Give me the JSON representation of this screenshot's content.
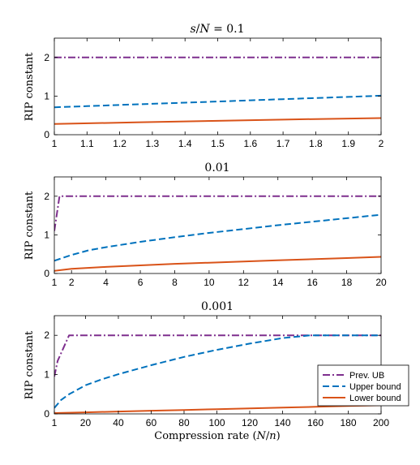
{
  "colors": {
    "prev_ub": "#7E2F8E",
    "upper": "#0072BD",
    "lower": "#D95319"
  },
  "legend": {
    "placement": "bottom-right",
    "entries": [
      "Prev. UB",
      "Upper bound",
      "Lower bound"
    ]
  },
  "chart_data": [
    {
      "type": "line",
      "title": "s/N = 0.1",
      "title_parts": {
        "italic_main": "s",
        "slash": "/",
        "italic_den": "N",
        "rest": " = 0.1"
      },
      "xlabel": "",
      "ylabel": "RIP constant",
      "xlim": [
        1,
        2
      ],
      "ylim": [
        0,
        2.5
      ],
      "xticks": [
        1,
        1.1,
        1.2,
        1.3,
        1.4,
        1.5,
        1.6,
        1.7,
        1.8,
        1.9,
        2
      ],
      "xtick_labels": [
        "1",
        "1.1",
        "1.2",
        "1.3",
        "1.4",
        "1.5",
        "1.6",
        "1.7",
        "1.8",
        "1.9",
        "2"
      ],
      "yticks": [
        0,
        1,
        2
      ],
      "ytick_labels": [
        "0",
        "1",
        "2"
      ],
      "grid": false,
      "series": [
        {
          "name": "Prev. UB",
          "style": "dashdot",
          "x": [
            1,
            1.5,
            2
          ],
          "y": [
            2,
            2,
            2
          ]
        },
        {
          "name": "Upper bound",
          "style": "dashed",
          "x": [
            1,
            1.1,
            1.2,
            1.3,
            1.4,
            1.5,
            1.6,
            1.7,
            1.8,
            1.9,
            2
          ],
          "y": [
            0.71,
            0.74,
            0.77,
            0.8,
            0.83,
            0.86,
            0.89,
            0.92,
            0.95,
            0.98,
            1.01
          ]
        },
        {
          "name": "Lower bound",
          "style": "solid",
          "x": [
            1,
            1.25,
            1.5,
            1.75,
            2
          ],
          "y": [
            0.28,
            0.32,
            0.36,
            0.4,
            0.43
          ]
        }
      ]
    },
    {
      "type": "line",
      "title": "0.01",
      "xlabel": "",
      "ylabel": "RIP constant",
      "xlim": [
        1,
        20
      ],
      "ylim": [
        0,
        2.5
      ],
      "xticks": [
        1,
        2,
        4,
        6,
        8,
        10,
        12,
        14,
        16,
        18,
        20
      ],
      "xtick_labels": [
        "1",
        "2",
        "4",
        "6",
        "8",
        "10",
        "12",
        "14",
        "16",
        "18",
        "20"
      ],
      "yticks": [
        0,
        1,
        2
      ],
      "ytick_labels": [
        "0",
        "1",
        "2"
      ],
      "grid": false,
      "series": [
        {
          "name": "Prev. UB",
          "style": "dashdot",
          "x": [
            1,
            1.3,
            20
          ],
          "y": [
            1.1,
            2,
            2
          ]
        },
        {
          "name": "Upper bound",
          "style": "dashed",
          "x": [
            1,
            2,
            3,
            4,
            6,
            8,
            10,
            12,
            14,
            16,
            18,
            20
          ],
          "y": [
            0.33,
            0.48,
            0.6,
            0.68,
            0.82,
            0.94,
            1.05,
            1.15,
            1.25,
            1.34,
            1.43,
            1.52
          ]
        },
        {
          "name": "Lower bound",
          "style": "solid",
          "x": [
            1,
            2,
            4,
            6,
            8,
            10,
            12,
            14,
            16,
            18,
            20
          ],
          "y": [
            0.07,
            0.12,
            0.17,
            0.21,
            0.25,
            0.28,
            0.31,
            0.34,
            0.37,
            0.4,
            0.43
          ]
        }
      ]
    },
    {
      "type": "line",
      "title": "0.001",
      "xlabel": "Compression rate (N/n)",
      "xlabel_parts": {
        "before": "Compression rate (",
        "num": "N",
        "slash": "/",
        "den": "n",
        "after": ")"
      },
      "ylabel": "RIP constant",
      "xlim": [
        1,
        200
      ],
      "ylim": [
        0,
        2.5
      ],
      "xticks": [
        1,
        20,
        40,
        60,
        80,
        100,
        120,
        140,
        160,
        180,
        200
      ],
      "xtick_labels": [
        "1",
        "20",
        "40",
        "60",
        "80",
        "100",
        "120",
        "140",
        "160",
        "180",
        "200"
      ],
      "yticks": [
        0,
        1,
        2
      ],
      "ytick_labels": [
        "0",
        "1",
        "2"
      ],
      "grid": false,
      "series": [
        {
          "name": "Prev. UB",
          "style": "dashdot",
          "x": [
            1,
            3,
            10,
            200
          ],
          "y": [
            0.95,
            1.35,
            2,
            2
          ]
        },
        {
          "name": "Upper bound",
          "style": "dashed",
          "x": [
            1,
            5,
            10,
            20,
            30,
            40,
            60,
            80,
            100,
            120,
            140,
            157,
            200
          ],
          "y": [
            0.15,
            0.35,
            0.5,
            0.73,
            0.88,
            1.01,
            1.24,
            1.45,
            1.63,
            1.79,
            1.93,
            2,
            2
          ]
        },
        {
          "name": "Lower bound",
          "style": "solid",
          "x": [
            1,
            20,
            40,
            60,
            80,
            100,
            120,
            140,
            160,
            180,
            200
          ],
          "y": [
            0.02,
            0.04,
            0.06,
            0.08,
            0.1,
            0.12,
            0.14,
            0.16,
            0.18,
            0.2,
            0.22
          ]
        }
      ]
    }
  ]
}
